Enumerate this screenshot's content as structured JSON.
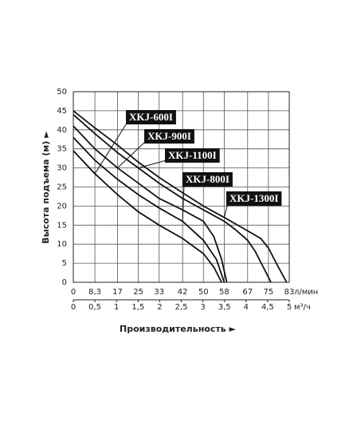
{
  "chart_data": {
    "type": "line",
    "xlabel": "Производительность ►",
    "ylabel": "Высота подъема (м) ►",
    "xunit": "л/мин",
    "x2unit": "м³/ч",
    "xlim": [
      0,
      83
    ],
    "xticks": [
      0,
      {
        "value": 8.3,
        "label": "8,3"
      },
      17,
      25,
      33,
      42,
      50,
      58,
      67,
      75,
      83
    ],
    "x2lim": [
      0,
      5
    ],
    "x2ticks": [
      0,
      {
        "value": 0.5,
        "label": "0,5"
      },
      1,
      {
        "value": 1.5,
        "label": "1,5"
      },
      2,
      {
        "value": 2.5,
        "label": "2,5"
      },
      3,
      {
        "value": 3.5,
        "label": "3,5"
      },
      4,
      {
        "value": 4.5,
        "label": "4,5"
      },
      5
    ],
    "ylim": [
      0,
      50
    ],
    "yticks": [
      0,
      5,
      10,
      15,
      20,
      25,
      30,
      35,
      40,
      45,
      50
    ],
    "grid": true,
    "series": [
      {
        "name": "XKJ-600I",
        "color": "#111111",
        "x": [
          0,
          8.3,
          17,
          25,
          33,
          42,
          50,
          54,
          57
        ],
        "values": [
          34.5,
          28.5,
          23,
          18.5,
          15,
          11.5,
          7.5,
          4,
          0
        ]
      },
      {
        "name": "XKJ-900I",
        "color": "#111111",
        "x": [
          0,
          8.3,
          17,
          25,
          33,
          42,
          50,
          54,
          57,
          59
        ],
        "values": [
          41,
          35,
          30,
          26,
          22,
          19,
          16,
          12,
          6,
          0
        ]
      },
      {
        "name": "XKJ-1100I",
        "color": "#111111",
        "x": [
          0,
          8.3,
          17,
          25,
          33,
          42,
          50,
          58,
          62,
          67,
          70,
          73,
          76
        ],
        "values": [
          44,
          39,
          34,
          30,
          26,
          22,
          19,
          16,
          14,
          11,
          8,
          4,
          0
        ]
      },
      {
        "name": "XKJ-800I",
        "color": "#111111",
        "x": [
          0,
          8.3,
          17,
          25,
          33,
          42,
          50,
          55,
          58
        ],
        "values": [
          38,
          32,
          27,
          23,
          19.5,
          16,
          11,
          6,
          0
        ]
      },
      {
        "name": "XKJ-1300I",
        "color": "#111111",
        "x": [
          0,
          8.3,
          17,
          25,
          33,
          42,
          50,
          58,
          67,
          72,
          75,
          78,
          82
        ],
        "values": [
          45,
          40.5,
          36,
          31.5,
          27.5,
          23.5,
          20,
          17,
          13.5,
          11.5,
          9,
          5,
          0
        ]
      }
    ]
  }
}
